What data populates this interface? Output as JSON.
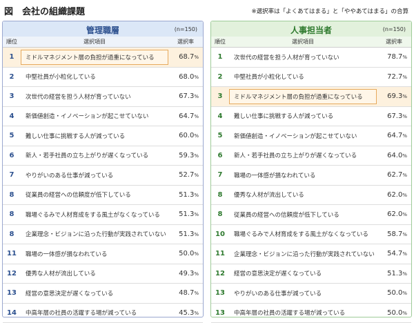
{
  "header": {
    "title": "図　会社の組織課題",
    "note": "※選択率は「よくあてはまる」と「ややあてはまる」の合算"
  },
  "colors": {
    "left_accent": "#2b4f8e",
    "right_accent": "#2e7a2e",
    "highlight": "#e6a95c"
  },
  "chart_data": [
    {
      "type": "table",
      "title": "管理職層",
      "n": "(n=150)",
      "columns": [
        "順位",
        "選択項目",
        "選択率"
      ],
      "rows": [
        {
          "rank": "1",
          "item": "ミドルマネジメント層の負担が過重になっている",
          "rate": "68.7",
          "highlight": true
        },
        {
          "rank": "2",
          "item": "中堅社員が小粒化している",
          "rate": "68.0"
        },
        {
          "rank": "3",
          "item": "次世代の経営を担う人材が育っていない",
          "rate": "67.3"
        },
        {
          "rank": "4",
          "item": "新価値創造・イノベーションが起こせていない",
          "rate": "64.7"
        },
        {
          "rank": "5",
          "item": "難しい仕事に挑戦する人が減っている",
          "rate": "60.0"
        },
        {
          "rank": "6",
          "item": "新人・若手社員の立ち上がりが遅くなっている",
          "rate": "59.3"
        },
        {
          "rank": "7",
          "item": "やりがいのある仕事が減っている",
          "rate": "52.7"
        },
        {
          "rank": "8",
          "item": "従業員の経営への信頼度が低下している",
          "rate": "51.3"
        },
        {
          "rank": "8",
          "item": "職場ぐるみで人材育成をする風土がなくなっている",
          "rate": "51.3"
        },
        {
          "rank": "8",
          "item": "企業理念・ビジョンに沿った行動が実践されていない",
          "rate": "51.3"
        },
        {
          "rank": "11",
          "item": "職場の一体感が損なわれている",
          "rate": "50.0"
        },
        {
          "rank": "12",
          "item": "優秀な人材が流出している",
          "rate": "49.3"
        },
        {
          "rank": "13",
          "item": "経営の意思決定が遅くなっている",
          "rate": "48.7"
        },
        {
          "rank": "14",
          "item": "中高年層の社員の活躍する場が減っている",
          "rate": "45.3"
        }
      ]
    },
    {
      "type": "table",
      "title": "人事担当者",
      "n": "(n=150)",
      "columns": [
        "順位",
        "選択項目",
        "選択率"
      ],
      "rows": [
        {
          "rank": "1",
          "item": "次世代の経営を担う人材が育っていない",
          "rate": "78.7"
        },
        {
          "rank": "2",
          "item": "中堅社員が小粒化している",
          "rate": "72.7"
        },
        {
          "rank": "3",
          "item": "ミドルマネジメント層の負担が過重になっている",
          "rate": "69.3",
          "highlight": true
        },
        {
          "rank": "4",
          "item": "難しい仕事に挑戦する人が減っている",
          "rate": "67.3"
        },
        {
          "rank": "5",
          "item": "新価値創造・イノベーションが起こせていない",
          "rate": "64.7"
        },
        {
          "rank": "6",
          "item": "新人・若手社員の立ち上がりが遅くなっている",
          "rate": "64.0"
        },
        {
          "rank": "7",
          "item": "職場の一体感が損なわれている",
          "rate": "62.7"
        },
        {
          "rank": "8",
          "item": "優秀な人材が流出している",
          "rate": "62.0"
        },
        {
          "rank": "8",
          "item": "従業員の経営への信頼度が低下している",
          "rate": "62.0"
        },
        {
          "rank": "10",
          "item": "職場ぐるみで人材育成をする風土がなくなっている",
          "rate": "58.7"
        },
        {
          "rank": "11",
          "item": "企業理念・ビジョンに沿った行動が実践されていない",
          "rate": "54.7"
        },
        {
          "rank": "12",
          "item": "経営の意思決定が遅くなっている",
          "rate": "51.3"
        },
        {
          "rank": "13",
          "item": "やりがいのある仕事が減っている",
          "rate": "50.0"
        },
        {
          "rank": "13",
          "item": "中高年層の社員の活躍する場が減っている",
          "rate": "50.0"
        }
      ]
    }
  ],
  "pct_symbol": "%"
}
